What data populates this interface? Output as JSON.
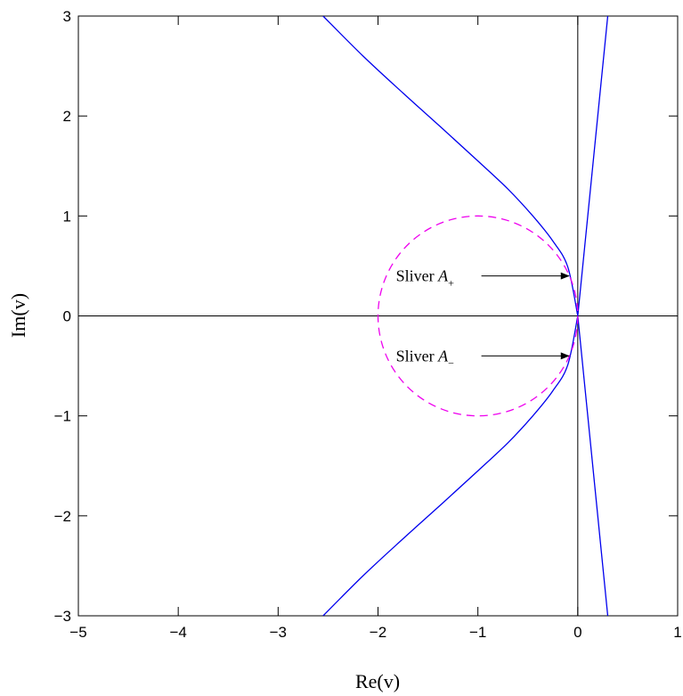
{
  "chart_data": {
    "type": "line",
    "title": "",
    "xlabel": "Re(v)",
    "ylabel": "Im(v)",
    "xlim": [
      -5,
      1
    ],
    "ylim": [
      -3,
      3
    ],
    "grid": false,
    "x_ticks": [
      -5,
      -4,
      -3,
      -2,
      -1,
      0,
      1
    ],
    "y_ticks": [
      -3,
      -2,
      -1,
      0,
      1,
      2,
      3
    ],
    "x_tick_labels": [
      "−5",
      "−4",
      "−3",
      "−2",
      "−1",
      "0",
      "1"
    ],
    "y_tick_labels": [
      "−3",
      "−2",
      "−1",
      "0",
      "1",
      "2",
      "3"
    ],
    "reference_lines": [
      {
        "orientation": "horizontal",
        "value": 0
      },
      {
        "orientation": "vertical",
        "value": 0
      }
    ],
    "series": [
      {
        "color": "#0000ee",
        "style": "solid",
        "x": [
          0.0,
          -0.1,
          -0.25,
          -0.45,
          -0.7,
          -1.0,
          -1.35,
          -1.75,
          -2.15,
          -2.55
        ],
        "y": [
          0.0,
          0.49,
          0.75,
          1.0,
          1.27,
          1.55,
          1.87,
          2.23,
          2.6,
          3.0
        ]
      },
      {
        "color": "#0000ee",
        "style": "solid",
        "x": [
          0.0,
          -0.1,
          -0.25,
          -0.45,
          -0.7,
          -1.0,
          -1.35,
          -1.75,
          -2.15,
          -2.55
        ],
        "y": [
          0.0,
          -0.49,
          -0.75,
          -1.0,
          -1.27,
          -1.55,
          -1.87,
          -2.23,
          -2.6,
          -3.0
        ]
      },
      {
        "color": "#0000ee",
        "style": "solid",
        "x": [
          0.0,
          0.03,
          0.07,
          0.12,
          0.17,
          0.22,
          0.27,
          0.3
        ],
        "y": [
          0.0,
          0.3,
          0.7,
          1.2,
          1.7,
          2.2,
          2.7,
          3.0
        ]
      },
      {
        "color": "#0000ee",
        "style": "solid",
        "x": [
          0.0,
          0.03,
          0.07,
          0.12,
          0.17,
          0.22,
          0.27,
          0.3
        ],
        "y": [
          0.0,
          -0.3,
          -0.7,
          -1.2,
          -1.7,
          -2.2,
          -2.7,
          -3.0
        ]
      },
      {
        "type": "circle",
        "color": "#ee00ee",
        "style": "dashed",
        "center": [
          -1,
          0
        ],
        "radius": 1
      }
    ],
    "annotations": [
      {
        "text": "Sliver ",
        "symbol": "A",
        "subscript": "+",
        "text_at": [
          -1.5,
          0.4
        ],
        "arrow_to": [
          -0.09,
          0.4
        ]
      },
      {
        "text": "Sliver ",
        "symbol": "A",
        "subscript": "−",
        "text_at": [
          -1.5,
          -0.4
        ],
        "arrow_to": [
          -0.09,
          -0.4
        ]
      }
    ]
  }
}
